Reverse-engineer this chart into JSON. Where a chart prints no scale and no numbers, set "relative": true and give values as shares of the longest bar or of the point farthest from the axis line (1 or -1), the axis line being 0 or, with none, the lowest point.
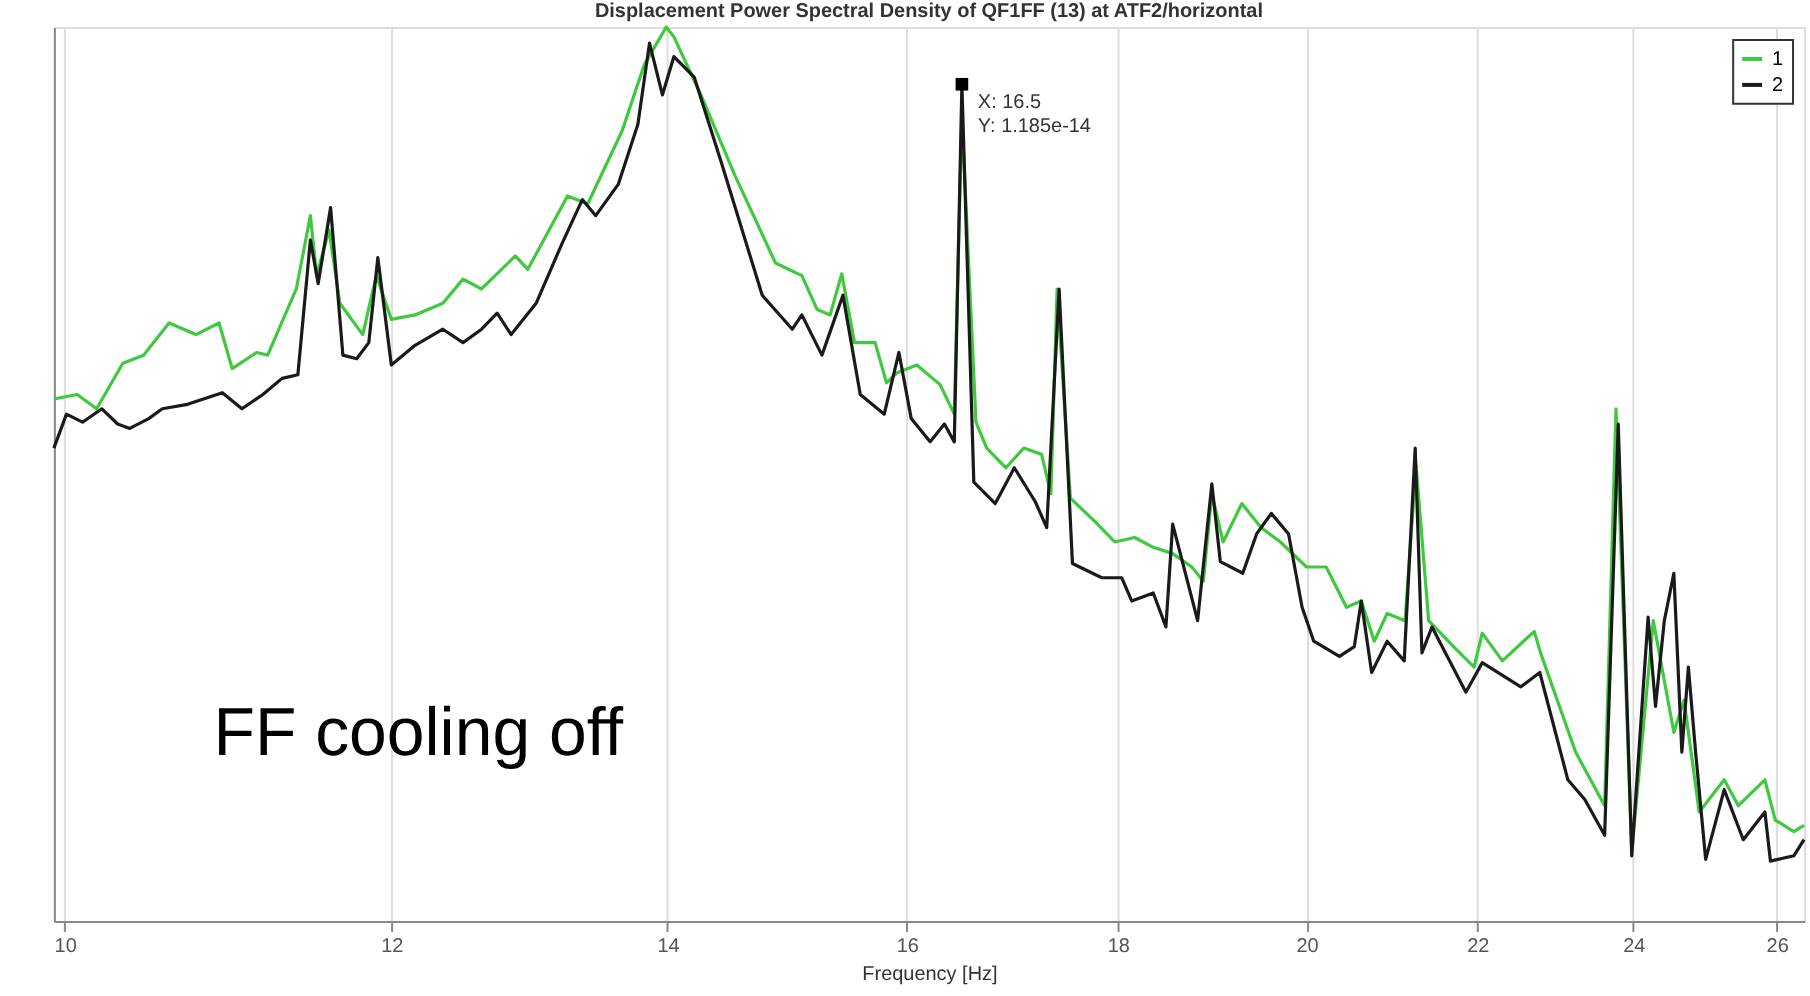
{
  "chart_data": {
    "type": "line",
    "title": "Displacement Power Spectral Density of QF1FF (13) at ATF2/horizontal",
    "xlabel": "Frequency [Hz]",
    "relative": true,
    "log": "x",
    "xlim": [
      9.94,
      26.4
    ],
    "xticks": [
      10,
      12,
      14,
      16,
      18,
      20,
      22,
      24,
      26
    ],
    "grid": "x",
    "legend": "top right",
    "line_style": "solid",
    "marker": "none",
    "annotations": [
      "FF cooling off",
      {
        "text": "X: 16.5\nY: 1.185e-14",
        "x": 16.5,
        "y": 0.936
      }
    ],
    "series": [
      {
        "name": "1",
        "color": "#3ec93e",
        "x": [
          9.94,
          10.07,
          10.18,
          10.33,
          10.45,
          10.6,
          10.76,
          10.9,
          10.98,
          11.13,
          11.2,
          11.38,
          11.47,
          11.51,
          11.59,
          11.66,
          11.81,
          11.9,
          12.0,
          12.16,
          12.35,
          12.49,
          12.62,
          12.86,
          12.95,
          13.24,
          13.39,
          13.65,
          13.82,
          13.99,
          14.05,
          14.27,
          14.54,
          14.87,
          15.09,
          15.22,
          15.33,
          15.43,
          15.54,
          15.72,
          15.82,
          15.91,
          16.09,
          16.3,
          16.43,
          16.5,
          16.63,
          16.73,
          16.91,
          17.08,
          17.25,
          17.34,
          17.4,
          17.53,
          17.77,
          17.97,
          18.17,
          18.36,
          18.56,
          18.76,
          18.88,
          18.97,
          19.09,
          19.29,
          19.5,
          19.71,
          20.0,
          20.22,
          20.45,
          20.62,
          20.77,
          20.92,
          21.13,
          21.26,
          21.41,
          21.71,
          21.96,
          22.06,
          22.31,
          22.71,
          22.79,
          23.24,
          23.62,
          23.77,
          23.98,
          24.27,
          24.55,
          24.69,
          24.9,
          25.25,
          25.45,
          25.83,
          25.98,
          26.25,
          26.4
        ],
        "values": [
          0.584,
          0.589,
          0.573,
          0.624,
          0.633,
          0.669,
          0.656,
          0.669,
          0.618,
          0.636,
          0.633,
          0.707,
          0.789,
          0.722,
          0.773,
          0.691,
          0.656,
          0.722,
          0.673,
          0.678,
          0.691,
          0.718,
          0.707,
          0.744,
          0.729,
          0.811,
          0.802,
          0.884,
          0.958,
          1.0,
          0.989,
          0.922,
          0.833,
          0.736,
          0.722,
          0.684,
          0.678,
          0.724,
          0.647,
          0.647,
          0.602,
          0.613,
          0.622,
          0.6,
          0.567,
          0.9,
          0.558,
          0.529,
          0.507,
          0.529,
          0.522,
          0.478,
          0.707,
          0.473,
          0.447,
          0.424,
          0.429,
          0.418,
          0.411,
          0.396,
          0.38,
          0.478,
          0.424,
          0.467,
          0.44,
          0.424,
          0.396,
          0.396,
          0.351,
          0.358,
          0.313,
          0.344,
          0.336,
          0.51,
          0.336,
          0.307,
          0.284,
          0.322,
          0.291,
          0.324,
          0.3,
          0.189,
          0.129,
          0.573,
          0.078,
          0.336,
          0.211,
          0.247,
          0.122,
          0.158,
          0.129,
          0.158,
          0.113,
          0.1,
          0.107
        ]
      },
      {
        "name": "2",
        "color": "#1a1a1a",
        "x": [
          9.94,
          10.01,
          10.1,
          10.21,
          10.3,
          10.37,
          10.48,
          10.56,
          10.71,
          10.92,
          11.04,
          11.17,
          11.29,
          11.39,
          11.47,
          11.52,
          11.6,
          11.68,
          11.77,
          11.85,
          11.91,
          12.0,
          12.16,
          12.35,
          12.49,
          12.62,
          12.73,
          12.83,
          13.01,
          13.2,
          13.35,
          13.45,
          13.62,
          13.77,
          13.86,
          13.96,
          14.05,
          14.21,
          14.43,
          14.76,
          15.01,
          15.09,
          15.26,
          15.44,
          15.59,
          15.8,
          15.93,
          16.04,
          16.21,
          16.34,
          16.43,
          16.5,
          16.61,
          16.81,
          16.99,
          17.19,
          17.3,
          17.42,
          17.55,
          17.84,
          18.04,
          18.14,
          18.36,
          18.49,
          18.56,
          18.82,
          18.97,
          19.06,
          19.3,
          19.45,
          19.61,
          19.8,
          19.95,
          20.08,
          20.37,
          20.54,
          20.62,
          20.74,
          20.92,
          21.12,
          21.25,
          21.33,
          21.45,
          21.86,
          22.06,
          22.54,
          22.78,
          23.14,
          23.36,
          23.62,
          23.8,
          23.98,
          24.2,
          24.3,
          24.42,
          24.55,
          24.66,
          24.75,
          24.85,
          24.99,
          25.25,
          25.52,
          25.83,
          25.91,
          26.25,
          26.4
        ],
        "values": [
          0.529,
          0.567,
          0.558,
          0.573,
          0.556,
          0.551,
          0.562,
          0.573,
          0.578,
          0.591,
          0.573,
          0.589,
          0.607,
          0.611,
          0.762,
          0.713,
          0.798,
          0.633,
          0.629,
          0.647,
          0.742,
          0.622,
          0.644,
          0.662,
          0.647,
          0.662,
          0.68,
          0.656,
          0.691,
          0.758,
          0.807,
          0.789,
          0.824,
          0.891,
          0.982,
          0.924,
          0.967,
          0.944,
          0.847,
          0.7,
          0.662,
          0.678,
          0.633,
          0.7,
          0.589,
          0.567,
          0.636,
          0.562,
          0.536,
          0.556,
          0.536,
          0.936,
          0.491,
          0.467,
          0.507,
          0.469,
          0.44,
          0.707,
          0.4,
          0.384,
          0.384,
          0.358,
          0.367,
          0.329,
          0.444,
          0.336,
          0.489,
          0.402,
          0.389,
          0.433,
          0.456,
          0.433,
          0.351,
          0.313,
          0.296,
          0.307,
          0.358,
          0.278,
          0.313,
          0.291,
          0.529,
          0.3,
          0.329,
          0.256,
          0.289,
          0.262,
          0.278,
          0.158,
          0.136,
          0.096,
          0.556,
          0.073,
          0.34,
          0.24,
          0.336,
          0.389,
          0.189,
          0.284,
          0.189,
          0.069,
          0.147,
          0.091,
          0.122,
          0.067,
          0.073,
          0.091
        ]
      }
    ]
  }
}
